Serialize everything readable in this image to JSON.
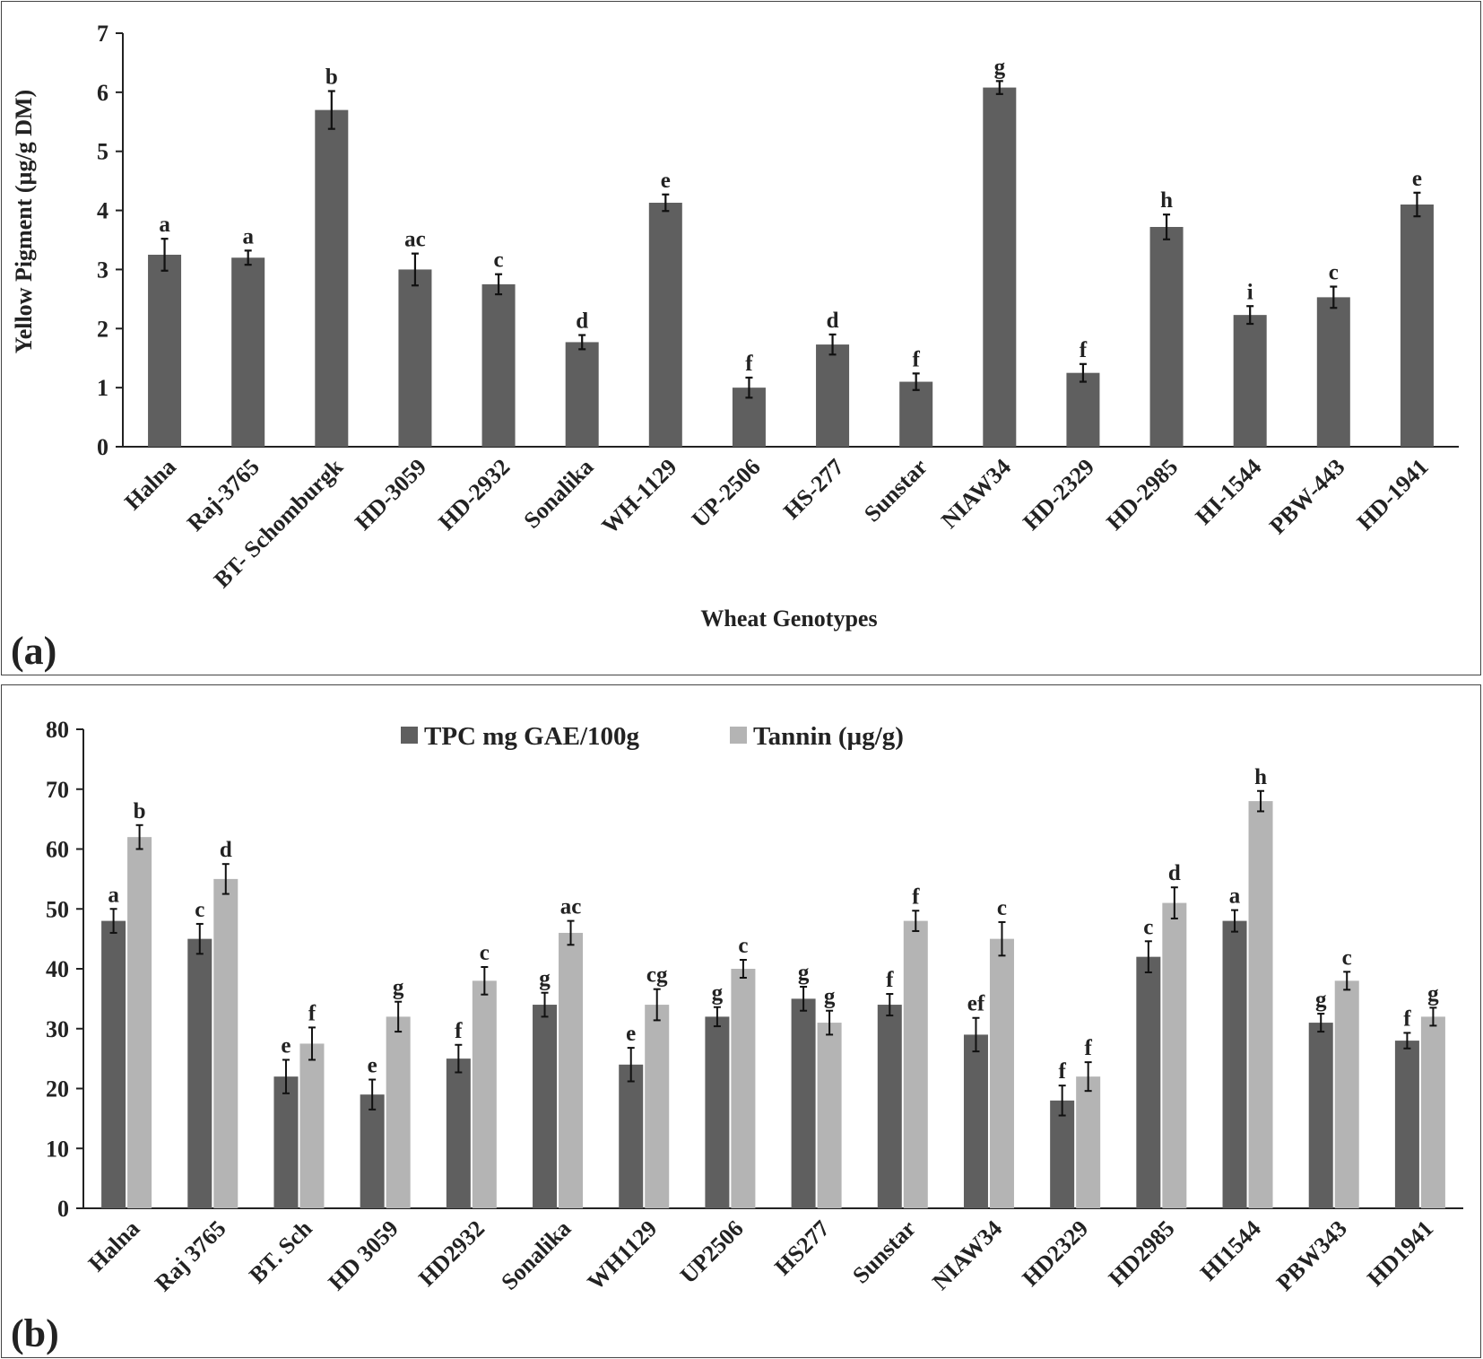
{
  "panel_a": {
    "label": "(a)",
    "colors": {
      "bar": "#5f5f5f"
    }
  },
  "panel_b": {
    "label": "(b)",
    "colors": {
      "series1": "#5f5f5f",
      "series2": "#b4b4b4"
    }
  },
  "chart_data": [
    {
      "type": "bar",
      "title": "",
      "xlabel": "Wheat Genotypes",
      "ylabel": "Yellow Pigment (µg/g DM)",
      "ylim": [
        0,
        7
      ],
      "yticks": [
        "0",
        "1",
        "2",
        "3",
        "4",
        "5",
        "6",
        "7"
      ],
      "categories": [
        "Halna",
        "Raj-3765",
        "BT- Schomburgk",
        "HD-3059",
        "HD-2932",
        "Sonalika",
        "WH-1129",
        "UP-2506",
        "HS-277",
        "Sunstar",
        "NIAW34",
        "HD-2329",
        "HD-2985",
        "HI-1544",
        "PBW-443",
        "HD-1941"
      ],
      "values": [
        3.25,
        3.2,
        5.7,
        3.0,
        2.75,
        1.77,
        4.13,
        1.0,
        1.73,
        1.1,
        6.08,
        1.25,
        3.72,
        2.23,
        2.53,
        4.1
      ],
      "errors": [
        0.27,
        0.12,
        0.32,
        0.27,
        0.17,
        0.12,
        0.14,
        0.17,
        0.17,
        0.14,
        0.11,
        0.15,
        0.21,
        0.15,
        0.18,
        0.2
      ],
      "significance": [
        "a",
        "a",
        "b",
        "ac",
        "c",
        "d",
        "e",
        "f",
        "d",
        "f",
        "g",
        "f",
        "h",
        "i",
        "c",
        "e"
      ],
      "grid": false
    },
    {
      "type": "bar",
      "title": "",
      "xlabel": "",
      "ylabel": "",
      "ylim": [
        0,
        80
      ],
      "yticks": [
        "0",
        "10",
        "20",
        "30",
        "40",
        "50",
        "60",
        "70",
        "80"
      ],
      "legend_position": "top-center",
      "categories": [
        "Halna",
        "Raj 3765",
        "BT. Sch",
        "HD 3059",
        "HD2932",
        "Sonalika",
        "WH1129",
        "UP2506",
        "HS277",
        "Sunstar",
        "NIAW34",
        "HD2329",
        "HD2985",
        "HI1544",
        "PBW343",
        "HD1941"
      ],
      "series": [
        {
          "name": "TPC mg GAE/100g",
          "values": [
            48,
            45,
            22,
            19,
            25,
            34,
            24,
            32,
            35,
            34,
            29,
            18,
            42,
            48,
            31,
            28
          ],
          "errors": [
            2.0,
            2.5,
            2.8,
            2.5,
            2.3,
            2.0,
            2.8,
            1.6,
            2.0,
            1.8,
            2.8,
            2.5,
            2.6,
            1.8,
            1.5,
            1.3
          ],
          "significance": [
            "a",
            "c",
            "e",
            "e",
            "f",
            "g",
            "e",
            "g",
            "g",
            "f",
            "ef",
            "f",
            "c",
            "a",
            "g",
            "f"
          ]
        },
        {
          "name": "Tannin (µg/g)",
          "values": [
            62,
            55,
            27.5,
            32,
            38,
            46,
            34,
            40,
            31,
            48,
            45,
            22,
            51,
            68,
            38,
            32
          ],
          "errors": [
            2.0,
            2.5,
            2.7,
            2.5,
            2.3,
            2.0,
            2.6,
            1.5,
            2.0,
            1.7,
            2.8,
            2.4,
            2.6,
            1.7,
            1.5,
            1.5
          ],
          "significance": [
            "b",
            "d",
            "f",
            "g",
            "c",
            "ac",
            "cg",
            "c",
            "g",
            "f",
            "c",
            "f",
            "d",
            "h",
            "c",
            "g"
          ]
        }
      ],
      "grid": false
    }
  ]
}
